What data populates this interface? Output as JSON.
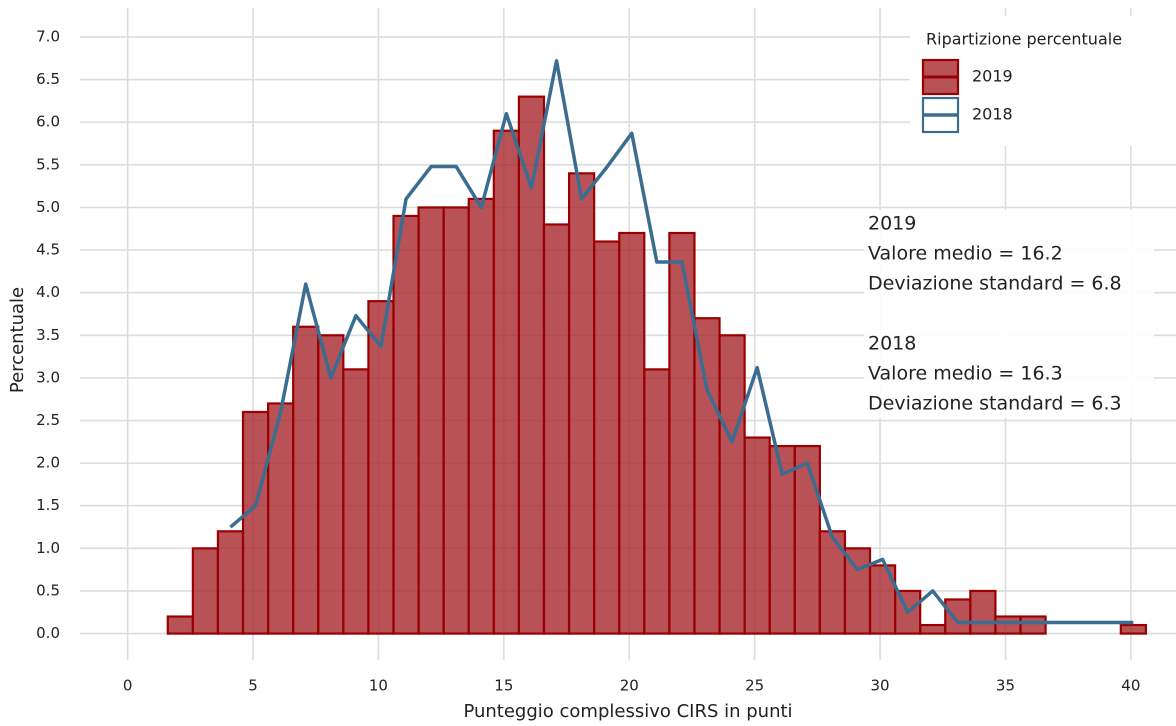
{
  "chart_data": {
    "type": "histogram",
    "xlabel": "Punteggio complessivo CIRS in punti",
    "ylabel": "Percentuale",
    "bins": [
      1.6,
      2.6,
      3.6,
      4.6,
      5.6,
      6.6,
      7.6,
      8.6,
      9.6,
      10.6,
      11.6,
      12.6,
      13.6,
      14.6,
      15.6,
      16.6,
      17.6,
      18.6,
      19.6,
      20.6,
      21.6,
      22.6,
      23.6,
      24.6,
      25.6,
      26.6,
      27.6,
      28.6,
      29.6,
      30.6,
      31.6,
      32.6,
      33.6,
      34.6,
      35.6,
      36.6,
      37.6,
      38.6,
      39.6,
      40.6
    ],
    "series": [
      {
        "name": "2019",
        "type": "histogram",
        "color": "#a8272d",
        "stroke": "#9b0000",
        "values": [
          0.2,
          1.0,
          1.2,
          2.6,
          2.7,
          3.6,
          3.5,
          3.1,
          3.9,
          4.9,
          5.0,
          5.0,
          5.1,
          5.9,
          6.3,
          4.8,
          5.4,
          4.6,
          4.7,
          3.1,
          4.7,
          3.7,
          3.5,
          2.3,
          2.2,
          2.2,
          1.2,
          1.0,
          0.8,
          0.5,
          0.1,
          0.4,
          0.5,
          0.2,
          0.2,
          0,
          0,
          0,
          0.1
        ]
      },
      {
        "name": "2018",
        "type": "line",
        "color": "#3a6d8f",
        "x": [
          4.1,
          5.1,
          6.1,
          7.1,
          8.1,
          9.1,
          10.1,
          11.1,
          12.1,
          13.1,
          14.1,
          15.1,
          16.1,
          17.1,
          18.1,
          19.1,
          20.1,
          21.1,
          22.1,
          23.1,
          24.1,
          25.1,
          26.1,
          27.1,
          28.1,
          29.1,
          30.1,
          31.1,
          32.1,
          33.1,
          34.1,
          35.1,
          36.1,
          37.1,
          38.1,
          39.1,
          40.1
        ],
        "values": [
          1.25,
          1.5,
          2.6,
          4.1,
          3.0,
          3.73,
          3.37,
          5.1,
          5.48,
          5.48,
          5.0,
          6.1,
          5.23,
          6.72,
          5.1,
          5.47,
          5.87,
          4.36,
          4.36,
          2.86,
          2.25,
          3.12,
          1.87,
          2.0,
          1.13,
          0.75,
          0.87,
          0.25,
          0.5,
          0.13,
          0.13,
          0.13,
          0.13,
          0.13,
          0.13,
          0.13,
          0.13
        ]
      }
    ],
    "legend_title": "Ripartizione percentuale",
    "legend": "upper right",
    "annotations": [
      "2019",
      "Valore medio = 16.2",
      "Deviazione standard = 6.8",
      "2018",
      "Valore medio = 16.3",
      "Deviazione standard = 6.3"
    ],
    "xlim": [
      -1.9,
      41.8
    ],
    "ylim": [
      -0.31,
      7.34
    ],
    "xticks": [
      0,
      5,
      10,
      15,
      20,
      25,
      30,
      35,
      40
    ],
    "yticks": [
      {
        "value": 0,
        "label": "0.0"
      },
      {
        "value": 0.5,
        "label": "0.5"
      },
      {
        "value": 1,
        "label": "1.0"
      },
      {
        "value": 1.5,
        "label": "1.5"
      },
      {
        "value": 2,
        "label": "2.0"
      },
      {
        "value": 2.5,
        "label": "2.5"
      },
      {
        "value": 3,
        "label": "3.0"
      },
      {
        "value": 3.5,
        "label": "3.5"
      },
      {
        "value": 4,
        "label": "4.0"
      },
      {
        "value": 4.5,
        "label": "4.5"
      },
      {
        "value": 5,
        "label": "5.0"
      },
      {
        "value": 5.5,
        "label": "5.5"
      },
      {
        "value": 6,
        "label": "6.0"
      },
      {
        "value": 6.5,
        "label": "6.5"
      },
      {
        "value": 7,
        "label": "7.0"
      }
    ],
    "grid": true
  }
}
